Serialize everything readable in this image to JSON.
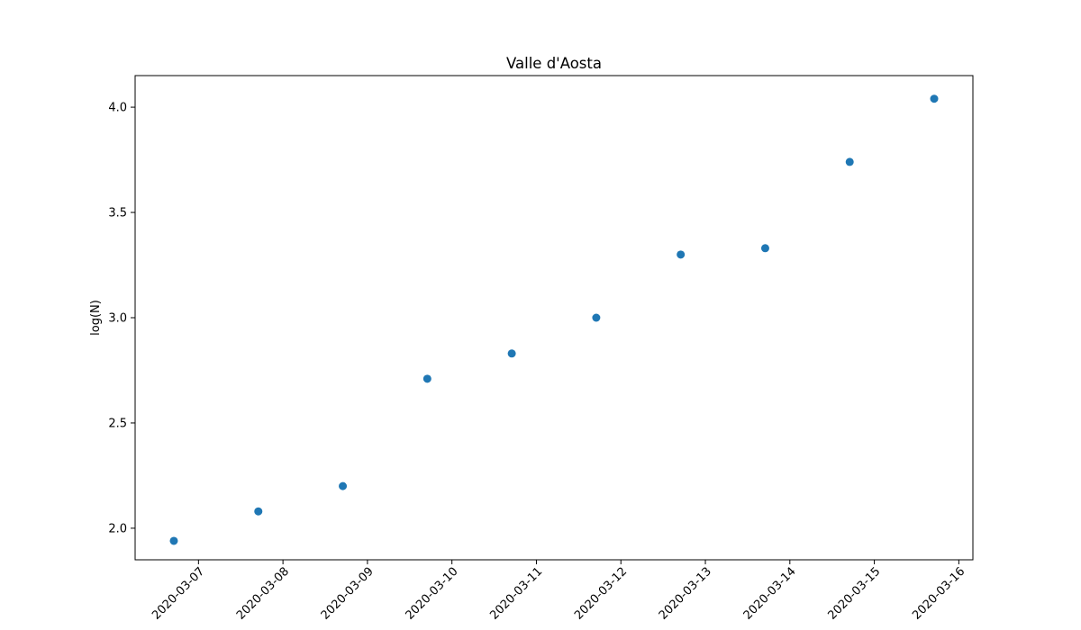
{
  "chart_data": {
    "type": "scatter",
    "title": "Valle d'Aosta",
    "xlabel": "",
    "ylabel": "log(N)",
    "grid": false,
    "marker_color": "#1f77b4",
    "x_ticks": [
      "2020-03-07",
      "2020-03-08",
      "2020-03-09",
      "2020-03-10",
      "2020-03-11",
      "2020-03-12",
      "2020-03-13",
      "2020-03-14",
      "2020-03-15",
      "2020-03-16"
    ],
    "y_ticks": [
      "2.0",
      "2.5",
      "3.0",
      "3.5",
      "4.0"
    ],
    "xlim": [
      "2020-03-06 06:00",
      "2020-03-16 04:00"
    ],
    "ylim": [
      1.85,
      4.15
    ],
    "points": [
      {
        "x": "2020-03-06 17:00",
        "y": 1.94
      },
      {
        "x": "2020-03-07 17:00",
        "y": 2.08
      },
      {
        "x": "2020-03-08 17:00",
        "y": 2.2
      },
      {
        "x": "2020-03-09 17:00",
        "y": 2.71
      },
      {
        "x": "2020-03-10 17:00",
        "y": 2.83
      },
      {
        "x": "2020-03-11 17:00",
        "y": 3.0
      },
      {
        "x": "2020-03-12 17:00",
        "y": 3.3
      },
      {
        "x": "2020-03-13 17:00",
        "y": 3.33
      },
      {
        "x": "2020-03-14 17:00",
        "y": 3.74
      },
      {
        "x": "2020-03-15 17:00",
        "y": 4.04
      }
    ]
  }
}
